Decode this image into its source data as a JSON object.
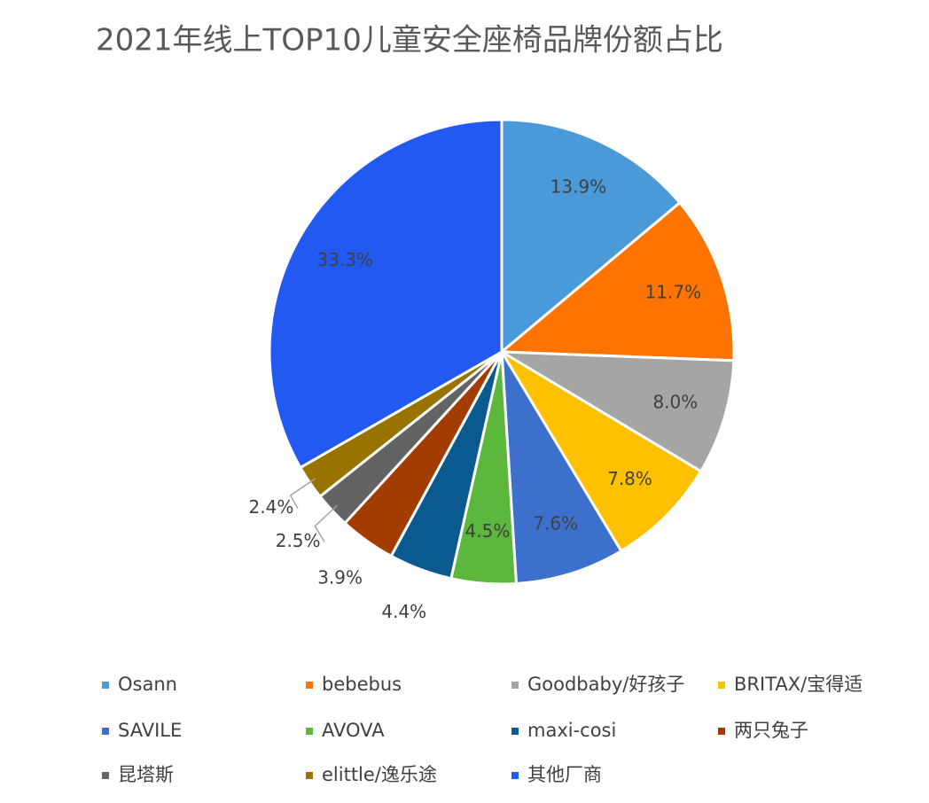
{
  "chart_data": {
    "type": "pie",
    "title": "2021年线上TOP10儿童安全座椅品牌份额占比",
    "categories": [
      "Osann",
      "bebebus",
      "Goodbaby/好孩子",
      "BRITAX/宝得适",
      "SAVILE",
      "AVOVA",
      "maxi-cosi",
      "两只兔子",
      "昆塔斯",
      "elittle/逸乐途",
      "其他厂商"
    ],
    "values": [
      13.9,
      11.7,
      8.0,
      7.8,
      7.6,
      4.5,
      4.4,
      3.9,
      2.5,
      2.4,
      33.3
    ],
    "value_labels": [
      "13.9%",
      "11.7%",
      "8.0%",
      "7.8%",
      "7.6%",
      "4.5%",
      "4.4%",
      "3.9%",
      "2.5%",
      "2.4%",
      "33.3%"
    ],
    "colors": [
      "#4a9ad9",
      "#ff7300",
      "#a5a5a5",
      "#ffc000",
      "#3d6fcc",
      "#5cb83c",
      "#0a5a8f",
      "#a33c00",
      "#636363",
      "#997300",
      "#2259f0"
    ],
    "legend": "bottom"
  }
}
